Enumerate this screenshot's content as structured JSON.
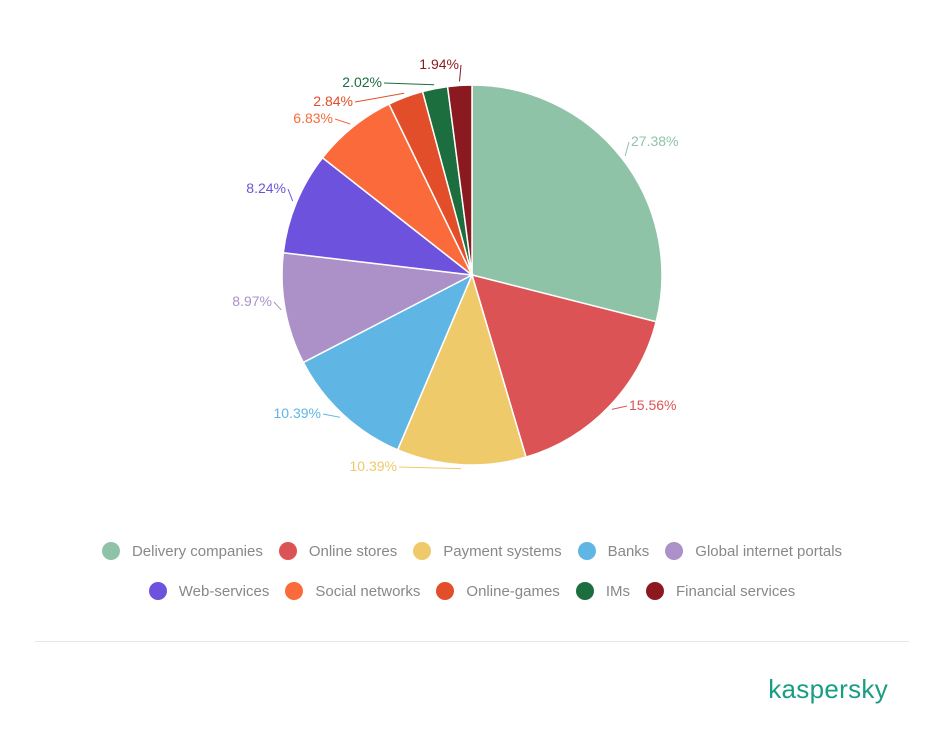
{
  "chart_data": {
    "type": "pie",
    "title": "",
    "slices": [
      {
        "name": "Delivery companies",
        "value": 27.38,
        "label": "27.38%",
        "color": "#8fc3a8"
      },
      {
        "name": "Online stores",
        "value": 15.56,
        "label": "15.56%",
        "color": "#dc5356"
      },
      {
        "name": "Payment systems",
        "value": 10.39,
        "label": "10.39%",
        "color": "#efca6a"
      },
      {
        "name": "Banks",
        "value": 10.39,
        "label": "10.39%",
        "color": "#5fb6e4"
      },
      {
        "name": "Global internet portals",
        "value": 8.97,
        "label": "8.97%",
        "color": "#ab91c8"
      },
      {
        "name": "Web-services",
        "value": 8.24,
        "label": "8.24%",
        "color": "#6d52dd"
      },
      {
        "name": "Social networks",
        "value": 6.83,
        "label": "6.83%",
        "color": "#fb6a3a"
      },
      {
        "name": "Online-games",
        "value": 2.84,
        "label": "2.84%",
        "color": "#e24e2a"
      },
      {
        "name": "IMs",
        "value": 2.02,
        "label": "2.02%",
        "color": "#1c6e3e"
      },
      {
        "name": "Financial services",
        "value": 1.94,
        "label": "1.94%",
        "color": "#8a1a1f"
      }
    ],
    "legend_rows": [
      [
        "Delivery companies",
        "Online stores",
        "Payment systems",
        "Banks",
        "Global internet portals"
      ],
      [
        "Web-services",
        "Social networks",
        "Online-games",
        "IMs",
        "Financial services"
      ]
    ],
    "legend_position": "bottom"
  },
  "brand": {
    "logo_text": "kaspersky",
    "color": "#1a9d84"
  }
}
